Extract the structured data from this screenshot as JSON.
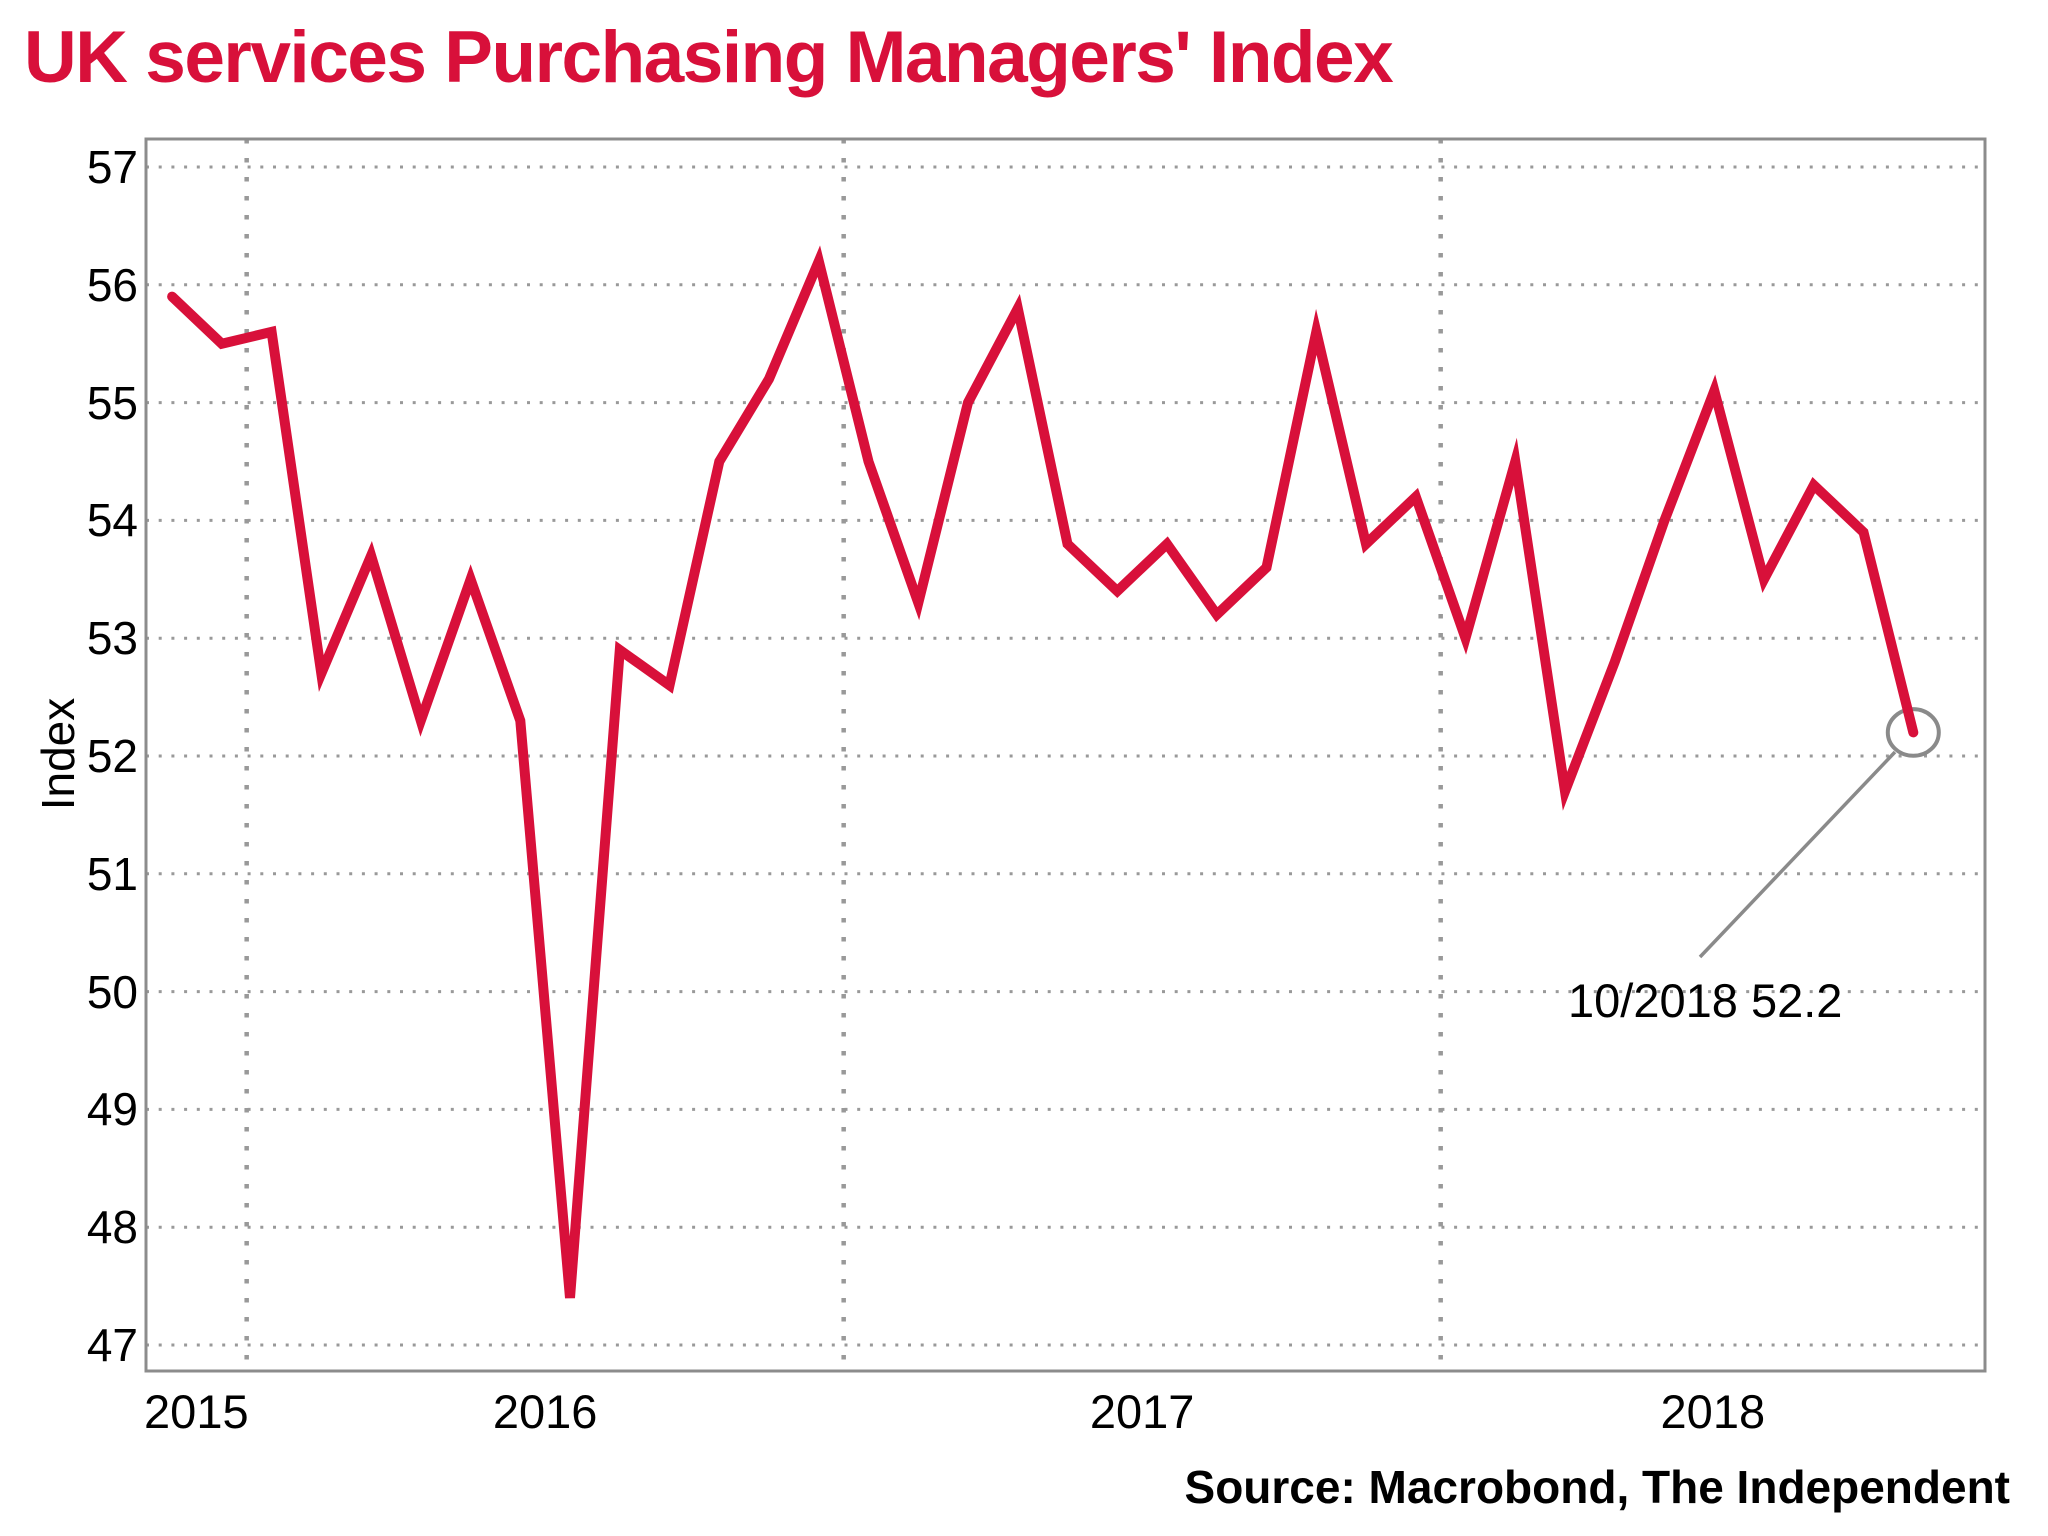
{
  "title": "UK services Purchasing Managers' Index",
  "source": "Source: Macrobond, The Independent",
  "colors": {
    "line_red": "#D8103A",
    "title_red": "#D8103A",
    "frame_grey": "#8C8C8C",
    "grid_grey": "#999999",
    "annotation_grey": "#8A8A8A",
    "text_black": "#000000",
    "background": "#FFFFFF"
  },
  "annotation": {
    "label": "10/2018 52.2"
  },
  "chart_data": {
    "type": "line",
    "title": "UK services Purchasing Managers' Index",
    "xlabel": "",
    "ylabel": "Index",
    "legend": "none",
    "grid": "dotted",
    "ylim": [
      47,
      57
    ],
    "yticks": [
      47,
      48,
      49,
      50,
      51,
      52,
      53,
      54,
      55,
      56,
      57
    ],
    "year_ticks": [
      "2015",
      "2016",
      "2017",
      "2018"
    ],
    "x": [
      "2015-11",
      "2015-12",
      "2016-01",
      "2016-02",
      "2016-03",
      "2016-04",
      "2016-05",
      "2016-06",
      "2016-07",
      "2016-08",
      "2016-09",
      "2016-10",
      "2016-11",
      "2016-12",
      "2017-01",
      "2017-02",
      "2017-03",
      "2017-04",
      "2017-05",
      "2017-06",
      "2017-07",
      "2017-08",
      "2017-09",
      "2017-10",
      "2017-11",
      "2017-12",
      "2018-01",
      "2018-02",
      "2018-03",
      "2018-04",
      "2018-05",
      "2018-06",
      "2018-07",
      "2018-08",
      "2018-09",
      "2018-10"
    ],
    "values": [
      55.9,
      55.5,
      55.6,
      52.7,
      53.7,
      52.3,
      53.5,
      52.3,
      47.4,
      52.9,
      52.6,
      54.5,
      55.2,
      56.2,
      54.5,
      53.3,
      55.0,
      55.8,
      53.8,
      53.4,
      53.8,
      53.2,
      53.6,
      55.6,
      53.8,
      54.2,
      53.0,
      54.5,
      51.7,
      52.8,
      54.0,
      55.1,
      53.5,
      54.3,
      53.9,
      52.2
    ],
    "highlight_point": {
      "x": "2018-10",
      "value": 52.2,
      "label": "10/2018 52.2"
    }
  }
}
